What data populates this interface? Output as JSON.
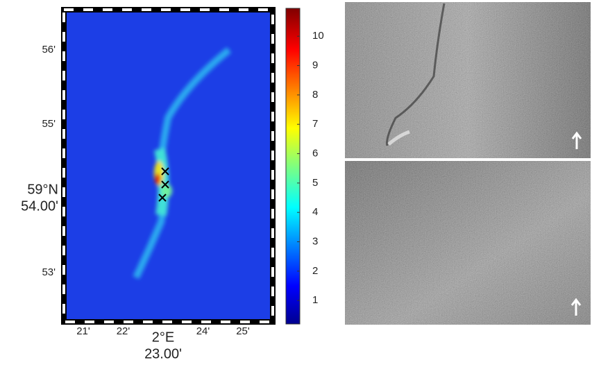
{
  "map": {
    "x_labels": [
      [
        "21'"
      ],
      [
        "22'"
      ],
      [
        "2°E",
        "23.00'"
      ],
      [
        "24'"
      ],
      [
        "25'"
      ]
    ],
    "y_labels": [
      [
        "56'"
      ],
      [
        "55'"
      ],
      [
        "59°N",
        "54.00'"
      ],
      [
        "53'"
      ]
    ]
  },
  "colorbar": {
    "range": [
      0.2,
      10.95
    ],
    "ticks": [
      1,
      2,
      3,
      4,
      5,
      6,
      7,
      8,
      9,
      10
    ]
  }
}
